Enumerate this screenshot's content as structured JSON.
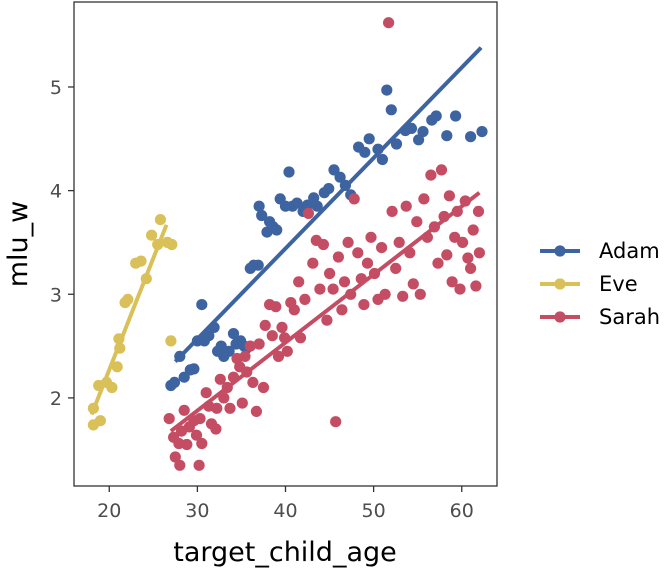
{
  "chart_data": {
    "type": "scatter",
    "xlabel": "target_child_age",
    "ylabel": "mlu_w",
    "xlim": [
      16,
      64
    ],
    "ylim": [
      1.15,
      5.82
    ],
    "xticks": [
      20,
      30,
      40,
      50,
      60
    ],
    "yticks": [
      2,
      3,
      4,
      5
    ],
    "grid": false,
    "legend_position": "right",
    "series": [
      {
        "name": "Adam",
        "color": "#3D64A0",
        "trend": {
          "x": [
            27.5,
            62.2
          ],
          "y": [
            2.35,
            5.38
          ]
        },
        "points": [
          [
            27.0,
            2.12
          ],
          [
            27.4,
            2.15
          ],
          [
            28.0,
            2.4
          ],
          [
            28.5,
            2.2
          ],
          [
            29.2,
            2.27
          ],
          [
            29.6,
            2.28
          ],
          [
            30.0,
            2.55
          ],
          [
            30.5,
            2.9
          ],
          [
            30.8,
            2.55
          ],
          [
            31.3,
            2.6
          ],
          [
            31.9,
            2.68
          ],
          [
            32.3,
            2.45
          ],
          [
            32.7,
            2.5
          ],
          [
            33.0,
            2.4
          ],
          [
            33.6,
            2.45
          ],
          [
            34.1,
            2.62
          ],
          [
            34.4,
            2.52
          ],
          [
            34.9,
            2.55
          ],
          [
            35.3,
            2.5
          ],
          [
            35.6,
            2.48
          ],
          [
            36.0,
            3.25
          ],
          [
            36.4,
            3.28
          ],
          [
            36.9,
            3.28
          ],
          [
            37.0,
            3.85
          ],
          [
            37.3,
            3.76
          ],
          [
            37.9,
            3.6
          ],
          [
            38.2,
            3.7
          ],
          [
            38.6,
            3.65
          ],
          [
            39.0,
            3.62
          ],
          [
            39.4,
            3.92
          ],
          [
            40.0,
            3.85
          ],
          [
            40.4,
            4.18
          ],
          [
            40.8,
            3.85
          ],
          [
            41.3,
            3.88
          ],
          [
            42.0,
            3.8
          ],
          [
            42.5,
            3.86
          ],
          [
            43.2,
            3.93
          ],
          [
            43.6,
            3.85
          ],
          [
            44.4,
            3.98
          ],
          [
            44.9,
            4.02
          ],
          [
            45.5,
            4.2
          ],
          [
            46.2,
            4.13
          ],
          [
            46.8,
            4.05
          ],
          [
            47.4,
            3.96
          ],
          [
            48.3,
            4.42
          ],
          [
            49.0,
            4.37
          ],
          [
            49.5,
            4.5
          ],
          [
            50.5,
            4.4
          ],
          [
            51.0,
            4.3
          ],
          [
            51.5,
            4.97
          ],
          [
            52.0,
            4.78
          ],
          [
            52.6,
            4.45
          ],
          [
            53.6,
            4.58
          ],
          [
            54.3,
            4.6
          ],
          [
            55.1,
            4.49
          ],
          [
            55.6,
            4.57
          ],
          [
            56.6,
            4.68
          ],
          [
            57.1,
            4.72
          ],
          [
            58.3,
            4.53
          ],
          [
            59.3,
            4.72
          ],
          [
            61.0,
            4.52
          ],
          [
            62.3,
            4.57
          ]
        ]
      },
      {
        "name": "Eve",
        "color": "#D9C058",
        "trend": {
          "x": [
            18.0,
            26.5
          ],
          "y": [
            1.84,
            3.67
          ]
        },
        "points": [
          [
            18.2,
            1.74
          ],
          [
            18.2,
            1.9
          ],
          [
            18.8,
            2.12
          ],
          [
            19.0,
            1.78
          ],
          [
            19.7,
            2.15
          ],
          [
            20.3,
            2.1
          ],
          [
            20.9,
            2.3
          ],
          [
            21.1,
            2.57
          ],
          [
            21.2,
            2.48
          ],
          [
            21.8,
            2.92
          ],
          [
            22.1,
            2.95
          ],
          [
            23.0,
            3.3
          ],
          [
            23.6,
            3.32
          ],
          [
            24.2,
            3.15
          ],
          [
            24.8,
            3.57
          ],
          [
            25.5,
            3.48
          ],
          [
            25.8,
            3.72
          ],
          [
            26.6,
            3.5
          ],
          [
            27.0,
            2.55
          ],
          [
            27.1,
            3.48
          ]
        ]
      },
      {
        "name": "Sarah",
        "color": "#C44D64",
        "trend": {
          "x": [
            27.0,
            62.0
          ],
          "y": [
            1.68,
            3.98
          ]
        },
        "points": [
          [
            26.8,
            1.8
          ],
          [
            27.3,
            1.62
          ],
          [
            27.5,
            1.43
          ],
          [
            27.9,
            1.56
          ],
          [
            28.0,
            1.35
          ],
          [
            28.2,
            1.68
          ],
          [
            28.5,
            1.88
          ],
          [
            28.8,
            1.55
          ],
          [
            29.1,
            1.72
          ],
          [
            29.6,
            1.78
          ],
          [
            29.9,
            1.64
          ],
          [
            30.2,
            1.35
          ],
          [
            30.3,
            1.8
          ],
          [
            30.5,
            1.56
          ],
          [
            31.0,
            2.05
          ],
          [
            31.3,
            1.92
          ],
          [
            31.6,
            1.75
          ],
          [
            32.1,
            1.7
          ],
          [
            32.2,
            1.9
          ],
          [
            32.6,
            2.18
          ],
          [
            33.0,
            2.0
          ],
          [
            33.4,
            2.1
          ],
          [
            33.7,
            1.9
          ],
          [
            34.1,
            2.2
          ],
          [
            34.5,
            2.38
          ],
          [
            34.8,
            2.3
          ],
          [
            35.1,
            1.95
          ],
          [
            35.4,
            2.4
          ],
          [
            35.6,
            2.25
          ],
          [
            36.0,
            2.5
          ],
          [
            36.3,
            2.15
          ],
          [
            36.7,
            1.87
          ],
          [
            37.0,
            2.52
          ],
          [
            37.5,
            2.1
          ],
          [
            37.7,
            2.7
          ],
          [
            38.2,
            2.9
          ],
          [
            38.5,
            2.6
          ],
          [
            38.9,
            2.88
          ],
          [
            39.2,
            2.4
          ],
          [
            39.6,
            2.68
          ],
          [
            39.9,
            2.58
          ],
          [
            40.2,
            2.45
          ],
          [
            40.6,
            2.92
          ],
          [
            41.0,
            2.85
          ],
          [
            41.5,
            3.12
          ],
          [
            41.7,
            2.58
          ],
          [
            42.2,
            2.95
          ],
          [
            42.6,
            3.78
          ],
          [
            43.1,
            3.3
          ],
          [
            43.5,
            3.52
          ],
          [
            43.9,
            3.05
          ],
          [
            44.3,
            3.48
          ],
          [
            44.7,
            2.75
          ],
          [
            45.0,
            3.2
          ],
          [
            45.4,
            3.05
          ],
          [
            45.7,
            1.77
          ],
          [
            46.0,
            3.36
          ],
          [
            46.4,
            2.85
          ],
          [
            46.7,
            3.12
          ],
          [
            47.1,
            3.5
          ],
          [
            47.4,
            3.0
          ],
          [
            47.8,
            3.92
          ],
          [
            48.2,
            3.4
          ],
          [
            48.6,
            3.15
          ],
          [
            48.9,
            2.9
          ],
          [
            49.3,
            3.3
          ],
          [
            49.7,
            3.55
          ],
          [
            50.1,
            3.2
          ],
          [
            50.5,
            2.95
          ],
          [
            50.9,
            3.45
          ],
          [
            51.3,
            3.0
          ],
          [
            51.7,
            5.62
          ],
          [
            52.1,
            3.8
          ],
          [
            52.5,
            3.25
          ],
          [
            52.9,
            3.5
          ],
          [
            53.3,
            2.98
          ],
          [
            53.7,
            3.85
          ],
          [
            54.1,
            3.4
          ],
          [
            54.5,
            3.1
          ],
          [
            54.9,
            3.7
          ],
          [
            55.3,
            3.0
          ],
          [
            55.7,
            3.92
          ],
          [
            56.1,
            3.55
          ],
          [
            56.5,
            4.15
          ],
          [
            56.9,
            3.65
          ],
          [
            57.3,
            3.3
          ],
          [
            57.7,
            4.2
          ],
          [
            58.0,
            3.75
          ],
          [
            58.3,
            3.38
          ],
          [
            58.6,
            3.95
          ],
          [
            58.9,
            3.12
          ],
          [
            59.2,
            3.55
          ],
          [
            59.5,
            3.8
          ],
          [
            59.8,
            3.05
          ],
          [
            60.1,
            3.5
          ],
          [
            60.4,
            3.9
          ],
          [
            60.7,
            3.35
          ],
          [
            61.0,
            3.25
          ],
          [
            61.3,
            3.62
          ],
          [
            61.6,
            3.08
          ],
          [
            61.9,
            3.8
          ],
          [
            62.0,
            3.4
          ]
        ]
      }
    ]
  }
}
